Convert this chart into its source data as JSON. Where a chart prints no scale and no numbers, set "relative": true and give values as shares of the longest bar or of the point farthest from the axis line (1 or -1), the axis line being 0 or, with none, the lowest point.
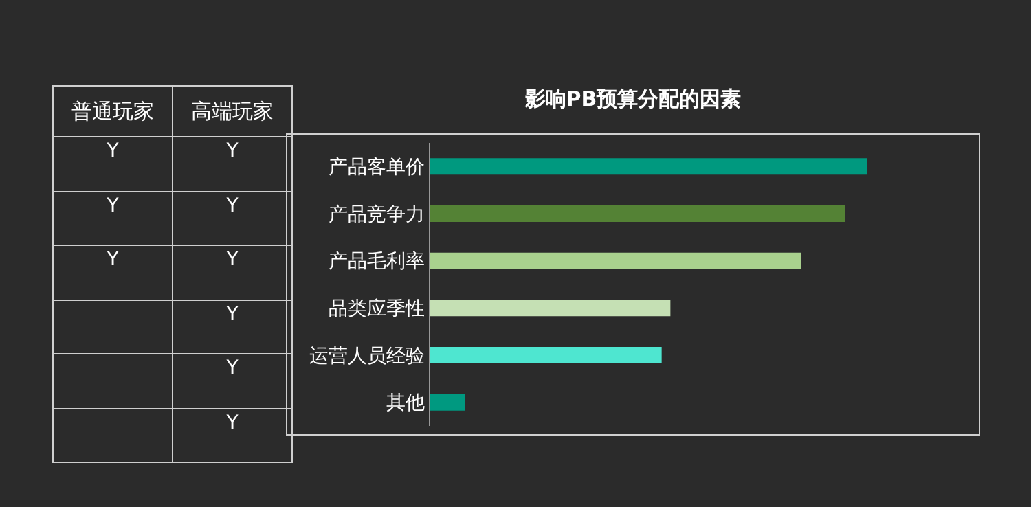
{
  "chart_data": [
    {
      "type": "other",
      "categories": [
        "普通玩家",
        "高端玩家"
      ],
      "cell_labels": [
        [
          "Y",
          "Y"
        ],
        [
          "Y",
          "Y"
        ],
        [
          "Y",
          "Y"
        ],
        [
          null,
          "Y"
        ],
        [
          null,
          "Y"
        ],
        [
          null,
          "Y"
        ]
      ]
    },
    {
      "type": "bar",
      "title": "影响PB预算分配的因素",
      "orientation": "horizontal",
      "relative": true,
      "categories": [
        "产品客单价",
        "产品竞争力",
        "产品毛利率",
        "品类应季性",
        "运营人员经验",
        "其他"
      ],
      "values": [
        1,
        0.95,
        0.85,
        0.55,
        0.53,
        0.08
      ],
      "colors": [
        "#00997f",
        "#548235",
        "#a9d18e",
        "#c5e0b4",
        "#4ee6d0",
        "#009980"
      ]
    }
  ]
}
